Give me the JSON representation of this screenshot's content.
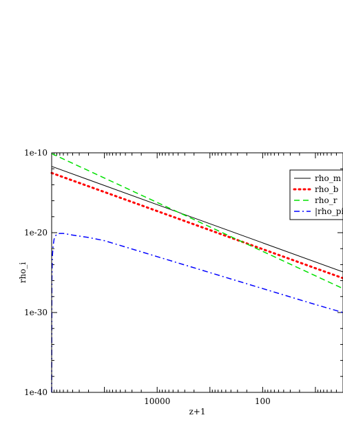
{
  "chart_data": {
    "type": "line",
    "title": "",
    "xlabel": "z+1",
    "ylabel": "rho_i",
    "x_scale": "log",
    "x_reversed": true,
    "xlim": [
      1000000,
      3
    ],
    "y_scale": "log",
    "ylim": [
      1e-40,
      1e-10
    ],
    "x_ticks": [
      {
        "value": 10000,
        "label": "10000"
      },
      {
        "value": 100,
        "label": "100"
      }
    ],
    "y_ticks": [
      {
        "value": 1e-10,
        "label": "1e-10"
      },
      {
        "value": 1e-20,
        "label": "1e-20"
      },
      {
        "value": 1e-30,
        "label": "1e-30"
      },
      {
        "value": 1e-40,
        "label": "1e-40"
      }
    ],
    "grid": false,
    "legend_position": "top-right",
    "series": [
      {
        "name": "rho_m",
        "color": "#000000",
        "style": "solid",
        "points": [
          [
            1000000,
            2e-12
          ],
          [
            3,
            1.2e-25
          ]
        ]
      },
      {
        "name": "rho_b",
        "color": "#ff0000",
        "style": "dotted",
        "points": [
          [
            1000000,
            3e-13
          ],
          [
            3,
            2e-26
          ]
        ]
      },
      {
        "name": "rho_r",
        "color": "#00e000",
        "style": "dashed",
        "points": [
          [
            1000000,
            8e-11
          ],
          [
            3,
            1e-27
          ]
        ]
      },
      {
        "name": "|rho_pi",
        "color": "#0000ff",
        "style": "dash-dot",
        "points": [
          [
            1000000,
            1e-40
          ],
          [
            990000,
            1e-26
          ],
          [
            970000,
            1e-23
          ],
          [
            940000,
            2e-22
          ],
          [
            900000,
            1.5e-21
          ],
          [
            850000,
            4e-21
          ],
          [
            780000,
            7e-21
          ],
          [
            700000,
            8e-21
          ],
          [
            600000,
            8e-21
          ],
          [
            400000,
            5e-21
          ],
          [
            200000,
            2.5e-21
          ],
          [
            100000,
            1e-21
          ],
          [
            10000,
            1e-23
          ],
          [
            1000,
            1e-25
          ],
          [
            100,
            1e-27
          ],
          [
            10,
            1e-29
          ],
          [
            3,
            1e-30
          ]
        ]
      }
    ]
  }
}
